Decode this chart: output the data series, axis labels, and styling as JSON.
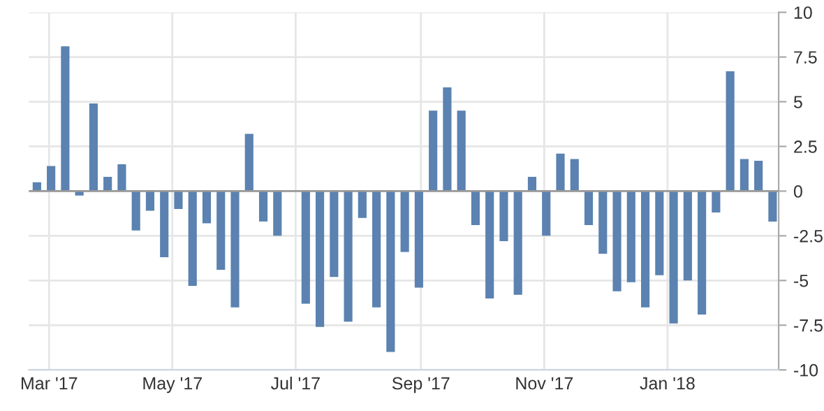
{
  "chart_data": {
    "type": "bar",
    "x": [
      "2017-02-23",
      "2017-03-02",
      "2017-03-09",
      "2017-03-16",
      "2017-03-23",
      "2017-03-30",
      "2017-04-06",
      "2017-04-13",
      "2017-04-20",
      "2017-04-27",
      "2017-05-04",
      "2017-05-11",
      "2017-05-18",
      "2017-05-25",
      "2017-06-01",
      "2017-06-08",
      "2017-06-15",
      "2017-06-22",
      "2017-06-29",
      "2017-07-06",
      "2017-07-13",
      "2017-07-20",
      "2017-07-27",
      "2017-08-03",
      "2017-08-10",
      "2017-08-17",
      "2017-08-24",
      "2017-08-31",
      "2017-09-07",
      "2017-09-14",
      "2017-09-21",
      "2017-09-28",
      "2017-10-05",
      "2017-10-12",
      "2017-10-19",
      "2017-10-26",
      "2017-11-02",
      "2017-11-09",
      "2017-11-16",
      "2017-11-23",
      "2017-11-30",
      "2017-12-07",
      "2017-12-14",
      "2017-12-21",
      "2017-12-28",
      "2018-01-04",
      "2018-01-11",
      "2018-01-18",
      "2018-01-25",
      "2018-02-01",
      "2018-02-08",
      "2018-02-15",
      "2018-02-22"
    ],
    "values": [
      0.5,
      1.4,
      8.1,
      -0.25,
      4.9,
      0.8,
      1.5,
      -2.2,
      -1.1,
      -3.7,
      -1.0,
      -5.3,
      -1.8,
      -4.4,
      -6.5,
      3.2,
      -1.7,
      -2.5,
      0.05,
      -6.3,
      -7.6,
      -4.8,
      -7.3,
      -1.5,
      -6.5,
      -9.0,
      -3.4,
      -5.4,
      4.5,
      5.8,
      4.5,
      -1.9,
      -6.0,
      -2.8,
      -5.8,
      0.8,
      -2.5,
      2.1,
      1.8,
      -1.9,
      -3.5,
      -5.6,
      -5.1,
      -6.5,
      -4.7,
      -7.4,
      -5.0,
      -6.9,
      -1.2,
      6.7,
      1.8,
      1.7,
      -1.7
    ],
    "color": "#5b82b0",
    "xlim": [
      "2017-02-19",
      "2018-02-25"
    ],
    "xticks": [
      {
        "value": "2017-03-01",
        "label": "Mar '17"
      },
      {
        "value": "2017-05-01",
        "label": "May '17"
      },
      {
        "value": "2017-07-01",
        "label": "Jul '17"
      },
      {
        "value": "2017-09-01",
        "label": "Sep '17"
      },
      {
        "value": "2017-11-01",
        "label": "Nov '17"
      },
      {
        "value": "2018-01-01",
        "label": "Jan '18"
      }
    ],
    "ylim": [
      -10,
      10
    ],
    "yticks": [
      10,
      7.5,
      5,
      2.5,
      0,
      -2.5,
      -5,
      -7.5,
      -10
    ],
    "grid": true
  }
}
